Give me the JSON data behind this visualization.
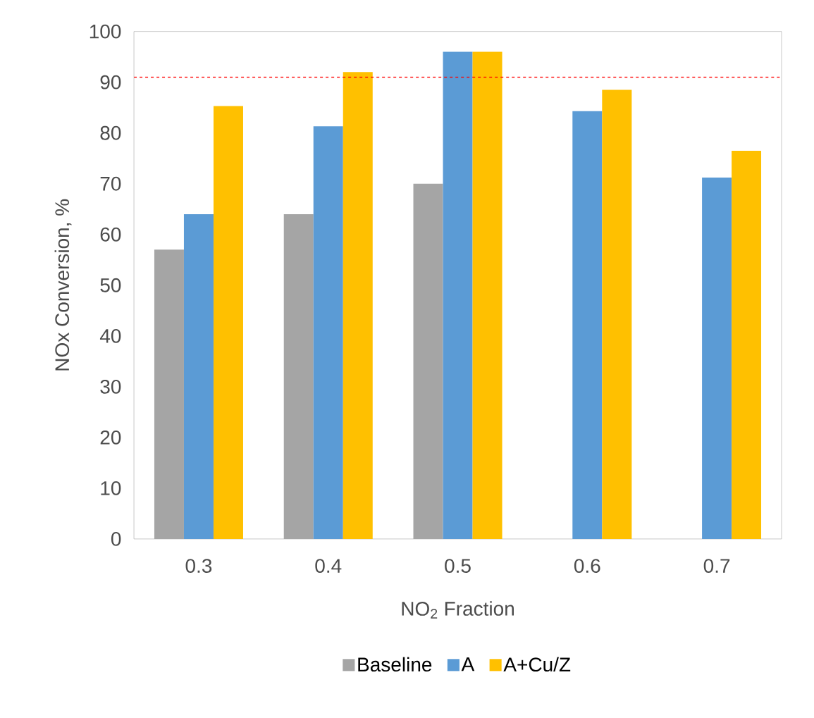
{
  "chart_data": {
    "type": "bar",
    "xlabel": "NO$_{2}$ Fraction",
    "ylabel": "NOx Conversion, %",
    "categories": [
      "0.3",
      "0.4",
      "0.5",
      "0.6",
      "0.7"
    ],
    "series": [
      {
        "name": "Baseline",
        "color": "#a5a5a5",
        "values": [
          57,
          64,
          70,
          null,
          null
        ]
      },
      {
        "name": "A",
        "color": "#5b9bd5",
        "values": [
          64,
          81.3,
          96,
          84.3,
          71.2
        ]
      },
      {
        "name": "A+Cu/Z",
        "color": "#ffc000",
        "values": [
          85.3,
          92,
          96,
          88.5,
          76.5
        ]
      }
    ],
    "ylim": [
      0,
      100
    ],
    "yticks": [
      0,
      10,
      20,
      30,
      40,
      50,
      60,
      70,
      80,
      90,
      100
    ],
    "ref_lines": [
      {
        "axis": "y",
        "value": 91,
        "color": "#ff0000",
        "line_style": "dashed"
      }
    ],
    "grid": false,
    "legend": "bottom"
  }
}
